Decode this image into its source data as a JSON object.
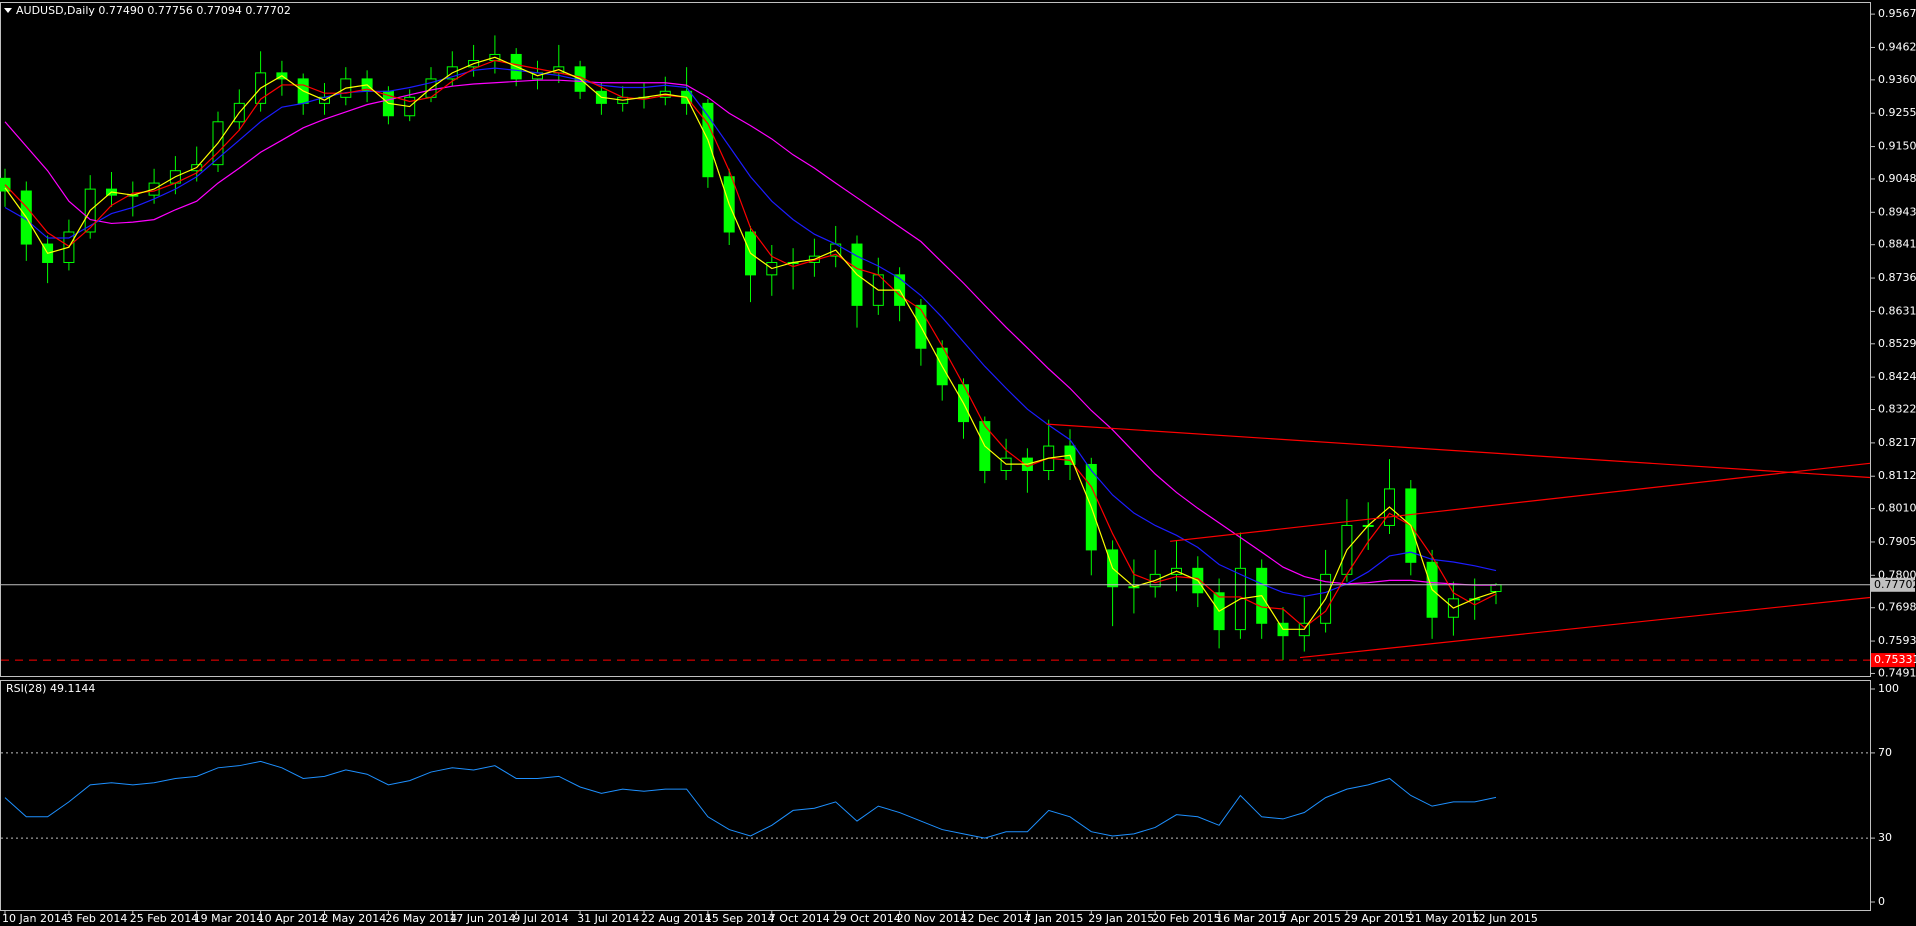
{
  "chart_data": {
    "type": "candlestick",
    "title": "AUDUSD,Daily  0.77490 0.77756 0.77094 0.77702",
    "color": "#00ff00",
    "categories": [
      "10 Jan 2014",
      null,
      null,
      "3 Feb 2014",
      null,
      null,
      "25 Feb 2014",
      null,
      null,
      "19 Mar 2014",
      null,
      null,
      "10 Apr 2014",
      null,
      null,
      "2 May 2014",
      null,
      null,
      "26 May 2014",
      null,
      null,
      "17 Jun 2014",
      null,
      null,
      "9 Jul 2014",
      null,
      null,
      "31 Jul 2014",
      null,
      null,
      "22 Aug 2014",
      null,
      null,
      "15 Sep 2014",
      null,
      null,
      "7 Oct 2014",
      null,
      null,
      "29 Oct 2014",
      null,
      null,
      "20 Nov 2014",
      null,
      null,
      "12 Dec 2014",
      null,
      null,
      "7 Jan 2015",
      null,
      null,
      "29 Jan 2015",
      null,
      null,
      "20 Feb 2015",
      null,
      null,
      "16 Mar 2015",
      null,
      null,
      "7 Apr 2015",
      null,
      null,
      "29 Apr 2015",
      null,
      null,
      "21 May 2015",
      null,
      null,
      "12 Jun 2015",
      null
    ],
    "open": [
      0.905,
      0.901,
      0.8843,
      0.8785,
      0.8881,
      0.9016,
      0.8997,
      0.8997,
      0.9035,
      0.9074,
      0.9093,
      0.9228,
      0.9286,
      0.9382,
      0.9363,
      0.9286,
      0.9305,
      0.9363,
      0.9324,
      0.9247,
      0.9305,
      0.9363,
      0.9401,
      0.9421,
      0.944,
      0.9363,
      0.9382,
      0.9401,
      0.9324,
      0.9286,
      0.9305,
      0.9305,
      0.9324,
      0.9286,
      0.9055,
      0.8881,
      0.8746,
      0.8785,
      0.8785,
      0.8805,
      0.8843,
      0.865,
      0.8746,
      0.865,
      0.8515,
      0.84,
      0.8284,
      0.813,
      0.8169,
      0.813,
      0.8207,
      0.8149,
      0.788,
      0.7764,
      0.7764,
      0.7803,
      0.7822,
      0.7745,
      0.7629,
      0.7822,
      0.7649,
      0.761,
      0.7649,
      0.7803,
      0.7957,
      0.7957,
      0.8072,
      0.7841,
      0.7668,
      0.7726,
      0.7749
    ],
    "high": [
      0.908,
      0.904,
      0.887,
      0.892,
      0.906,
      0.907,
      0.904,
      0.908,
      0.912,
      0.915,
      0.926,
      0.933,
      0.945,
      0.942,
      0.938,
      0.935,
      0.94,
      0.939,
      0.934,
      0.933,
      0.94,
      0.945,
      0.947,
      0.95,
      0.946,
      0.942,
      0.947,
      0.942,
      0.935,
      0.934,
      0.935,
      0.937,
      0.94,
      0.93,
      0.908,
      0.89,
      0.884,
      0.883,
      0.886,
      0.89,
      0.887,
      0.88,
      0.877,
      0.867,
      0.854,
      0.842,
      0.83,
      0.823,
      0.82,
      0.829,
      0.826,
      0.817,
      0.791,
      0.785,
      0.788,
      0.791,
      0.786,
      0.779,
      0.7935,
      0.785,
      0.77,
      0.773,
      0.788,
      0.804,
      0.803,
      0.8166,
      0.81,
      0.788,
      0.778,
      0.779,
      0.77756
    ],
    "low": [
      0.896,
      0.879,
      0.872,
      0.876,
      0.886,
      0.896,
      0.893,
      0.897,
      0.9,
      0.904,
      0.907,
      0.92,
      0.926,
      0.931,
      0.925,
      0.925,
      0.928,
      0.929,
      0.922,
      0.923,
      0.929,
      0.934,
      0.937,
      0.938,
      0.934,
      0.933,
      0.935,
      0.93,
      0.925,
      0.926,
      0.927,
      0.928,
      0.925,
      0.902,
      0.884,
      0.866,
      0.868,
      0.87,
      0.874,
      0.877,
      0.858,
      0.862,
      0.86,
      0.846,
      0.835,
      0.823,
      0.809,
      0.81,
      0.806,
      0.81,
      0.81,
      0.78,
      0.764,
      0.768,
      0.773,
      0.775,
      0.77,
      0.757,
      0.76,
      0.76,
      0.7533,
      0.756,
      0.762,
      0.778,
      0.788,
      0.793,
      0.78,
      0.76,
      0.761,
      0.766,
      0.77094
    ],
    "close": [
      0.901,
      0.8843,
      0.8785,
      0.8881,
      0.9016,
      0.8997,
      0.8997,
      0.9035,
      0.9074,
      0.9093,
      0.9228,
      0.9286,
      0.9382,
      0.9363,
      0.9286,
      0.9305,
      0.9363,
      0.9324,
      0.9247,
      0.9305,
      0.9363,
      0.9401,
      0.9421,
      0.944,
      0.9363,
      0.9382,
      0.9401,
      0.9324,
      0.9286,
      0.9305,
      0.9305,
      0.9324,
      0.9286,
      0.9055,
      0.8881,
      0.8746,
      0.8785,
      0.8785,
      0.8805,
      0.8843,
      0.865,
      0.8746,
      0.865,
      0.8515,
      0.84,
      0.8284,
      0.813,
      0.8169,
      0.813,
      0.8207,
      0.8149,
      0.788,
      0.7764,
      0.7764,
      0.7803,
      0.7822,
      0.7745,
      0.7629,
      0.7822,
      0.7649,
      0.761,
      0.7649,
      0.7803,
      0.7957,
      0.7957,
      0.8072,
      0.7841,
      0.7668,
      0.7726,
      0.7726,
      0.77702
    ],
    "moving_averages": [
      {
        "color": "#ff00ff",
        "values": [
          0.9228,
          0.9151,
          0.9074,
          0.8978,
          0.892,
          0.8908,
          0.8912,
          0.892,
          0.8951,
          0.8978,
          0.9035,
          0.9082,
          0.9132,
          0.917,
          0.9209,
          0.9236,
          0.9259,
          0.9282,
          0.9297,
          0.9313,
          0.9328,
          0.934,
          0.9347,
          0.9351,
          0.9355,
          0.9359,
          0.9359,
          0.9355,
          0.9351,
          0.9351,
          0.9351,
          0.9351,
          0.9343,
          0.9305,
          0.9255,
          0.9216,
          0.9174,
          0.9124,
          0.9082,
          0.9035,
          0.8989,
          0.8943,
          0.8897,
          0.8851,
          0.8785,
          0.872,
          0.865,
          0.8581,
          0.8516,
          0.845,
          0.8389,
          0.8319,
          0.8258,
          0.8188,
          0.8119,
          0.8061,
          0.8011,
          0.7965,
          0.7919,
          0.7873,
          0.7826,
          0.7796,
          0.778,
          0.7773,
          0.7777,
          0.7784,
          0.7784,
          0.7777,
          0.7773,
          0.7769,
          0.7769
        ]
      },
      {
        "color": "#1c1cff",
        "values": [
          0.8958,
          0.892,
          0.8862,
          0.8862,
          0.8901,
          0.8939,
          0.8958,
          0.8985,
          0.9016,
          0.9055,
          0.9113,
          0.917,
          0.9228,
          0.9274,
          0.9286,
          0.9305,
          0.932,
          0.9324,
          0.9324,
          0.9336,
          0.9351,
          0.937,
          0.939,
          0.9397,
          0.939,
          0.9382,
          0.9374,
          0.9359,
          0.9343,
          0.9336,
          0.9336,
          0.9343,
          0.9336,
          0.9247,
          0.9151,
          0.9055,
          0.8978,
          0.892,
          0.8874,
          0.8843,
          0.8805,
          0.8774,
          0.8735,
          0.8681,
          0.8612,
          0.8535,
          0.8458,
          0.8389,
          0.8323,
          0.8273,
          0.8227,
          0.813,
          0.8053,
          0.7996,
          0.7957,
          0.7926,
          0.7888,
          0.7834,
          0.7803,
          0.7773,
          0.7746,
          0.7734,
          0.7746,
          0.7773,
          0.7811,
          0.7861,
          0.7873,
          0.785,
          0.7842,
          0.783,
          0.7815
        ]
      },
      {
        "color": "#ff0000",
        "values": [
          0.903,
          0.896,
          0.8879,
          0.8836,
          0.8894,
          0.8965,
          0.9003,
          0.901,
          0.9035,
          0.9067,
          0.9132,
          0.9202,
          0.9299,
          0.9344,
          0.9344,
          0.9318,
          0.9318,
          0.9331,
          0.9311,
          0.9292,
          0.9305,
          0.9356,
          0.9395,
          0.9421,
          0.9408,
          0.9395,
          0.9382,
          0.9369,
          0.9337,
          0.9305,
          0.9299,
          0.9311,
          0.9305,
          0.9222,
          0.9074,
          0.8894,
          0.8804,
          0.8772,
          0.8792,
          0.8811,
          0.8766,
          0.8746,
          0.8682,
          0.8637,
          0.8522,
          0.84,
          0.8271,
          0.8194,
          0.8143,
          0.8169,
          0.8162,
          0.8079,
          0.7931,
          0.7803,
          0.7777,
          0.7796,
          0.779,
          0.7732,
          0.7732,
          0.77,
          0.7694,
          0.7636,
          0.7687,
          0.7803,
          0.7906,
          0.7995,
          0.7957,
          0.786,
          0.7745,
          0.7707,
          0.7741
        ]
      },
      {
        "color": "#ffff00",
        "values": [
          0.902,
          0.8927,
          0.8814,
          0.8833,
          0.8949,
          0.9007,
          0.8997,
          0.9016,
          0.9055,
          0.9084,
          0.9161,
          0.9257,
          0.9334,
          0.9373,
          0.9325,
          0.9296,
          0.9334,
          0.9344,
          0.9286,
          0.9276,
          0.9334,
          0.9382,
          0.9411,
          0.9431,
          0.9402,
          0.9373,
          0.9392,
          0.9363,
          0.9305,
          0.9296,
          0.9305,
          0.9315,
          0.9305,
          0.9171,
          0.8968,
          0.8814,
          0.8766,
          0.8785,
          0.8795,
          0.8824,
          0.8747,
          0.8698,
          0.8698,
          0.8583,
          0.8458,
          0.8342,
          0.8207,
          0.815,
          0.815,
          0.8169,
          0.8178,
          0.8015,
          0.7822,
          0.7764,
          0.7784,
          0.7813,
          0.7784,
          0.7687,
          0.7726,
          0.7736,
          0.763,
          0.763,
          0.7726,
          0.788,
          0.7957,
          0.8015,
          0.7957,
          0.7755,
          0.7697,
          0.7726,
          0.7748
        ]
      }
    ],
    "trendlines": [
      {
        "color": "#ff0000",
        "points": [
          [
            48.9,
            0.8276
          ],
          [
            65,
            0.8206
          ]
        ]
      },
      {
        "color": "#ff0000",
        "points": [
          [
            54.7,
            0.7907
          ],
          [
            65,
            0.7984
          ]
        ]
      },
      {
        "color": "#ff0000",
        "points": [
          [
            60.8,
            0.7541
          ],
          [
            69,
            0.7599
          ]
        ]
      }
    ],
    "price_lines": [
      {
        "value": 0.77702,
        "color": "#c0c0c0",
        "style": "solid"
      },
      {
        "value": 0.75331,
        "color": "#ff0000",
        "style": "dashed"
      }
    ],
    "ylim": [
      0.7483,
      0.9602
    ],
    "yticks": [
      {
        "value": 0.9567,
        "label": "0.95670"
      },
      {
        "value": 0.9462,
        "label": "0.94620"
      },
      {
        "value": 0.936,
        "label": "0.93600"
      },
      {
        "value": 0.9255,
        "label": "0.92550"
      },
      {
        "value": 0.915,
        "label": "0.91500"
      },
      {
        "value": 0.9048,
        "label": "0.90480"
      },
      {
        "value": 0.8943,
        "label": "0.89430"
      },
      {
        "value": 0.8841,
        "label": "0.88410"
      },
      {
        "value": 0.8736,
        "label": "0.87360"
      },
      {
        "value": 0.8631,
        "label": "0.86310"
      },
      {
        "value": 0.8529,
        "label": "0.85290"
      },
      {
        "value": 0.8424,
        "label": "0.84240"
      },
      {
        "value": 0.8322,
        "label": "0.83220"
      },
      {
        "value": 0.8217,
        "label": "0.82170"
      },
      {
        "value": 0.8112,
        "label": "0.81120"
      },
      {
        "value": 0.801,
        "label": "0.80100"
      },
      {
        "value": 0.7905,
        "label": "0.79050"
      },
      {
        "value": 0.78,
        "label": "0.78000"
      },
      {
        "value": 0.7698,
        "label": "0.76980"
      },
      {
        "value": 0.7593,
        "label": "0.75930"
      },
      {
        "value": 0.7491,
        "label": "0.74910"
      }
    ],
    "rsi": {
      "title": "RSI(28) 49.1144",
      "color": "#1e90ff",
      "ylim": [
        0,
        100
      ],
      "yticks": [
        0,
        30,
        70,
        100
      ],
      "values": [
        49,
        40,
        40,
        47,
        55,
        56,
        55,
        56,
        58,
        59,
        63,
        64,
        66,
        63,
        58,
        59,
        62,
        60,
        55,
        57,
        61,
        63,
        62,
        64,
        58,
        58,
        59,
        54,
        51,
        53,
        52,
        53,
        53,
        40,
        34,
        31,
        36,
        43,
        44,
        47,
        38,
        45,
        42,
        38,
        34,
        32,
        30,
        33,
        33,
        43,
        40,
        33,
        31,
        32,
        35,
        41,
        40,
        36,
        50,
        40,
        39,
        42,
        49,
        53,
        55,
        58,
        50,
        45,
        47,
        47,
        49.1144
      ]
    }
  }
}
